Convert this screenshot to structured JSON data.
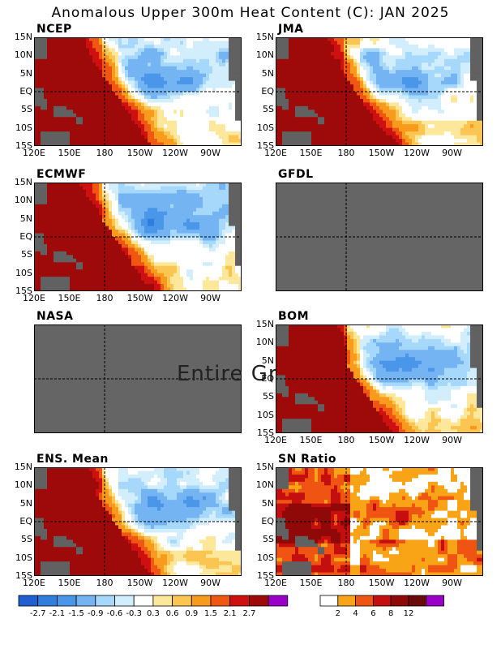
{
  "title": "Anomalous Upper 300m Heat Content (C): JAN 2025",
  "colors": {
    "missing": "#656565",
    "land": "#616161",
    "anomaly": [
      "#1f5fd0",
      "#2f7ddc",
      "#4a96e8",
      "#74b4f2",
      "#a6d8fb",
      "#d2eefd",
      "#ffffff",
      "#fde79b",
      "#fbc552",
      "#f89a1b",
      "#f05712",
      "#cf1010",
      "#9e0a0a",
      "#9b00c8"
    ],
    "sn": [
      "#ffffff",
      "#f9a316",
      "#ef5412",
      "#c50e0e",
      "#900909",
      "#6a0a0a",
      "#9b00c8"
    ]
  },
  "axes": {
    "y_ticks": [
      "15N",
      "10N",
      "5N",
      "EQ",
      "5S",
      "10S",
      "15S"
    ],
    "x_ticks": [
      "120E",
      "150E",
      "180",
      "150W",
      "120W",
      "90W"
    ]
  },
  "chart_data": [
    {
      "type": "heatmap",
      "title": "NCEP",
      "status": "data"
    },
    {
      "type": "heatmap",
      "title": "JMA",
      "status": "data"
    },
    {
      "type": "heatmap",
      "title": "ECMWF",
      "status": "data"
    },
    {
      "type": "heatmap",
      "title": "GFDL",
      "status": "missing"
    },
    {
      "type": "heatmap",
      "title": "NASA",
      "status": "missing",
      "note": "Entire Gr"
    },
    {
      "type": "heatmap",
      "title": "BOM",
      "status": "data"
    },
    {
      "type": "heatmap",
      "title": "ENS. Mean",
      "status": "data"
    },
    {
      "type": "heatmap",
      "title": "SN Ratio",
      "status": "data"
    }
  ],
  "colorbar_anomaly": {
    "labels": [
      "-2.7",
      "-2.1",
      "-1.5",
      "-0.9",
      "-0.6",
      "-0.3",
      "0.3",
      "0.6",
      "0.9",
      "1.5",
      "2.1",
      "2.7"
    ]
  },
  "colorbar_sn": {
    "labels": [
      "2",
      "4",
      "6",
      "8",
      "12"
    ]
  }
}
